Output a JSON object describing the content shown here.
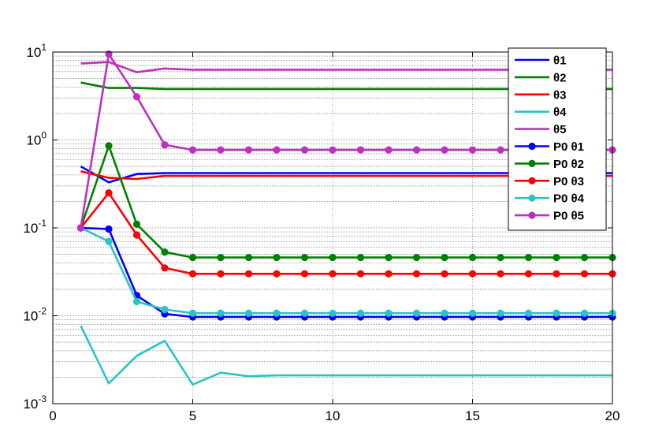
{
  "chart_data": {
    "type": "line",
    "title": "",
    "xlabel": "",
    "ylabel": "",
    "xlim": [
      0,
      20
    ],
    "ylim": [
      0.001,
      10
    ],
    "yscale": "log",
    "grid": true,
    "legend_position": "top-right",
    "x_ticks": [
      {
        "value": 0,
        "label": "0"
      },
      {
        "value": 5,
        "label": "5"
      },
      {
        "value": 10,
        "label": "10"
      },
      {
        "value": 15,
        "label": "15"
      },
      {
        "value": 20,
        "label": "20"
      }
    ],
    "y_ticks": [
      {
        "value": 0.001,
        "base": "10",
        "exp": "-3"
      },
      {
        "value": 0.01,
        "base": "10",
        "exp": "-2"
      },
      {
        "value": 0.1,
        "base": "10",
        "exp": "-1"
      },
      {
        "value": 1,
        "base": "10",
        "exp": "0"
      },
      {
        "value": 10,
        "base": "10",
        "exp": "1"
      }
    ],
    "x": [
      1,
      2,
      3,
      4,
      5,
      6,
      7,
      8,
      9,
      10,
      11,
      12,
      13,
      14,
      15,
      16,
      17,
      18,
      19,
      20
    ],
    "series": [
      {
        "name": "θ1",
        "color": "#0000ff",
        "marker": false,
        "values": [
          0.5,
          0.33,
          0.41,
          0.42,
          0.42,
          0.42,
          0.42,
          0.42,
          0.42,
          0.42,
          0.42,
          0.42,
          0.42,
          0.42,
          0.42,
          0.42,
          0.42,
          0.42,
          0.42,
          0.42
        ]
      },
      {
        "name": "θ2",
        "color": "#008000",
        "marker": false,
        "values": [
          4.5,
          3.9,
          3.9,
          3.8,
          3.8,
          3.8,
          3.8,
          3.8,
          3.8,
          3.8,
          3.8,
          3.8,
          3.8,
          3.8,
          3.8,
          3.8,
          3.8,
          3.8,
          3.8,
          3.8
        ]
      },
      {
        "name": "θ3",
        "color": "#ff0000",
        "marker": false,
        "values": [
          0.44,
          0.37,
          0.36,
          0.39,
          0.39,
          0.39,
          0.39,
          0.39,
          0.39,
          0.39,
          0.39,
          0.39,
          0.39,
          0.39,
          0.39,
          0.39,
          0.39,
          0.39,
          0.39,
          0.39
        ]
      },
      {
        "name": "θ4",
        "color": "#2bc4c4",
        "marker": false,
        "values": [
          0.0077,
          0.0017,
          0.0035,
          0.0052,
          0.00165,
          0.00225,
          0.00205,
          0.0021,
          0.0021,
          0.0021,
          0.0021,
          0.0021,
          0.0021,
          0.0021,
          0.0021,
          0.0021,
          0.0021,
          0.0021,
          0.0021,
          0.0021
        ]
      },
      {
        "name": "θ5",
        "color": "#bf30bf",
        "marker": false,
        "values": [
          7.4,
          7.7,
          5.9,
          6.5,
          6.3,
          6.3,
          6.3,
          6.3,
          6.3,
          6.3,
          6.3,
          6.3,
          6.3,
          6.3,
          6.3,
          6.3,
          6.3,
          6.3,
          6.3,
          6.3
        ]
      },
      {
        "name": "P0 θ1",
        "color": "#0000ff",
        "marker": true,
        "values": [
          0.1,
          0.097,
          0.017,
          0.0105,
          0.0097,
          0.0097,
          0.0097,
          0.0097,
          0.0097,
          0.0097,
          0.0097,
          0.0097,
          0.0097,
          0.0097,
          0.0097,
          0.0097,
          0.0097,
          0.0097,
          0.0097,
          0.0097
        ]
      },
      {
        "name": "P0 θ2",
        "color": "#008000",
        "marker": true,
        "values": [
          0.1,
          0.86,
          0.11,
          0.053,
          0.046,
          0.046,
          0.046,
          0.046,
          0.046,
          0.046,
          0.046,
          0.046,
          0.046,
          0.046,
          0.046,
          0.046,
          0.046,
          0.046,
          0.046,
          0.046
        ]
      },
      {
        "name": "P0 θ3",
        "color": "#ff0000",
        "marker": true,
        "values": [
          0.1,
          0.25,
          0.083,
          0.035,
          0.03,
          0.03,
          0.03,
          0.03,
          0.03,
          0.03,
          0.03,
          0.03,
          0.03,
          0.03,
          0.03,
          0.03,
          0.03,
          0.03,
          0.03,
          0.03
        ]
      },
      {
        "name": "P0 θ4",
        "color": "#2bc4c4",
        "marker": true,
        "values": [
          0.1,
          0.07,
          0.0145,
          0.0118,
          0.0107,
          0.0107,
          0.0107,
          0.0107,
          0.0107,
          0.0107,
          0.0107,
          0.0107,
          0.0107,
          0.0107,
          0.0107,
          0.0107,
          0.0107,
          0.0107,
          0.0107,
          0.0107
        ]
      },
      {
        "name": "P0 θ5",
        "color": "#bf30bf",
        "marker": true,
        "values": [
          0.1,
          9.5,
          3.1,
          0.88,
          0.77,
          0.77,
          0.77,
          0.77,
          0.77,
          0.77,
          0.77,
          0.77,
          0.77,
          0.77,
          0.77,
          0.77,
          0.77,
          0.77,
          0.77,
          0.77
        ]
      }
    ]
  }
}
